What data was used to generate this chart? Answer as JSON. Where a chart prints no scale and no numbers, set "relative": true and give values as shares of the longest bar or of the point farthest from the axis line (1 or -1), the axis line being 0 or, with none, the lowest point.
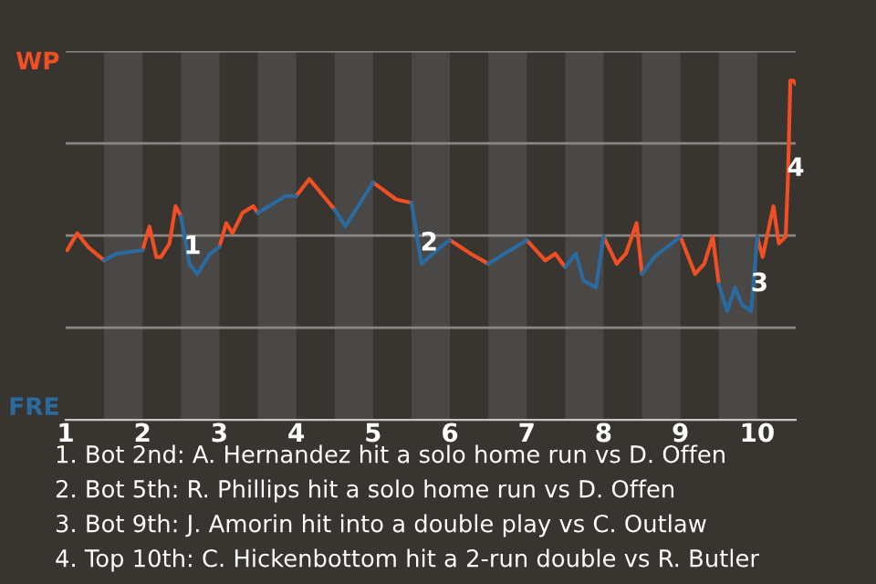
{
  "chart_data": {
    "type": "line",
    "relative": true,
    "x": [
      1.02,
      1.15,
      1.29,
      1.5,
      1.66,
      2.0,
      2.09,
      2.18,
      2.24,
      2.35,
      2.43,
      2.5,
      2.61,
      2.71,
      2.88,
      3.0,
      3.09,
      3.17,
      3.3,
      3.44,
      3.5,
      3.86,
      4.0,
      4.17,
      4.5,
      4.64,
      5.0,
      5.3,
      5.5,
      5.63,
      5.88,
      6.0,
      6.27,
      6.5,
      6.71,
      7.0,
      7.24,
      7.37,
      7.5,
      7.64,
      7.74,
      7.82,
      7.9,
      8.0,
      8.17,
      8.29,
      8.43,
      8.5,
      8.66,
      9.0,
      9.19,
      9.31,
      9.42,
      9.5,
      9.61,
      9.71,
      9.8,
      9.92,
      10.0,
      10.07,
      10.21,
      10.28,
      10.37,
      10.4,
      10.43,
      10.47,
      10.5
    ],
    "series": [
      {
        "name": "WP",
        "color": "#f04e23",
        "values": [
          0.5,
          0.55,
          0.51,
          0.47,
          null,
          0.5,
          0.57,
          0.48,
          0.48,
          0.52,
          0.63,
          0.6,
          null,
          null,
          null,
          0.51,
          0.58,
          0.55,
          0.61,
          0.63,
          0.61,
          null,
          0.66,
          0.71,
          0.62,
          null,
          0.7,
          0.65,
          0.64,
          null,
          null,
          0.53,
          0.49,
          0.46,
          null,
          0.53,
          0.47,
          0.49,
          0.45,
          null,
          null,
          null,
          null,
          0.54,
          0.46,
          0.49,
          0.58,
          0.43,
          null,
          0.54,
          0.43,
          0.46,
          0.54,
          0.4,
          null,
          null,
          null,
          null,
          0.54,
          0.48,
          0.63,
          0.52,
          0.54,
          0.72,
          1,
          1,
          0.99
        ]
      },
      {
        "name": "FRE",
        "color": "#2a6a9e",
        "values": [
          null,
          null,
          null,
          0.47,
          0.49,
          0.5,
          null,
          null,
          null,
          null,
          null,
          0.6,
          0.46,
          0.43,
          0.49,
          0.51,
          null,
          null,
          null,
          null,
          0.61,
          0.66,
          0.66,
          null,
          0.62,
          0.57,
          0.7,
          null,
          0.64,
          0.46,
          0.51,
          0.53,
          null,
          0.46,
          0.49,
          0.53,
          null,
          null,
          0.45,
          0.49,
          0.41,
          0.4,
          0.39,
          0.54,
          null,
          null,
          null,
          0.43,
          0.48,
          0.54,
          null,
          null,
          null,
          0.4,
          0.32,
          0.39,
          0.34,
          0.32,
          0.54,
          null,
          null,
          null,
          null,
          null,
          null,
          null,
          null
        ]
      }
    ],
    "xlim": [
      1,
      10.5
    ],
    "xticks": [
      1,
      2,
      3,
      4,
      5,
      6,
      7,
      8,
      9,
      10
    ],
    "grid": "y",
    "legend": "left",
    "marker": "none",
    "line_style": "solid",
    "bands": [
      {
        "axis": "x",
        "from": 1.5,
        "to": 2,
        "color": "#4a4846"
      },
      {
        "axis": "x",
        "from": 2.5,
        "to": 3,
        "color": "#4a4846"
      },
      {
        "axis": "x",
        "from": 3.5,
        "to": 4,
        "color": "#4a4846"
      },
      {
        "axis": "x",
        "from": 4.5,
        "to": 5,
        "color": "#4a4846"
      },
      {
        "axis": "x",
        "from": 5.5,
        "to": 6,
        "color": "#4a4846"
      },
      {
        "axis": "x",
        "from": 6.5,
        "to": 7,
        "color": "#4a4846"
      },
      {
        "axis": "x",
        "from": 7.5,
        "to": 8,
        "color": "#4a4846"
      },
      {
        "axis": "x",
        "from": 8.5,
        "to": 9,
        "color": "#4a4846"
      },
      {
        "axis": "x",
        "from": 9.5,
        "to": 10,
        "color": "#4a4846"
      }
    ],
    "annotations": [
      {
        "text": "1",
        "x": 2.65,
        "y": 0.51
      },
      {
        "text": "2",
        "x": 5.73,
        "y": 0.52
      },
      {
        "text": "3",
        "x": 10.03,
        "y": 0.4
      },
      {
        "text": "4",
        "x": 10.5,
        "y": 0.74
      },
      "1. Bot 2nd: A. Hernandez hit a solo home run vs D. Offen",
      "2. Bot 5th: R. Phillips hit a solo home run vs D. Offen",
      "3. Bot 9th: J. Amorin hit into a double play vs C. Outlaw",
      "4. Top 10th: C. Hickenbottom hit a 2-run double vs R. Butler"
    ]
  }
}
